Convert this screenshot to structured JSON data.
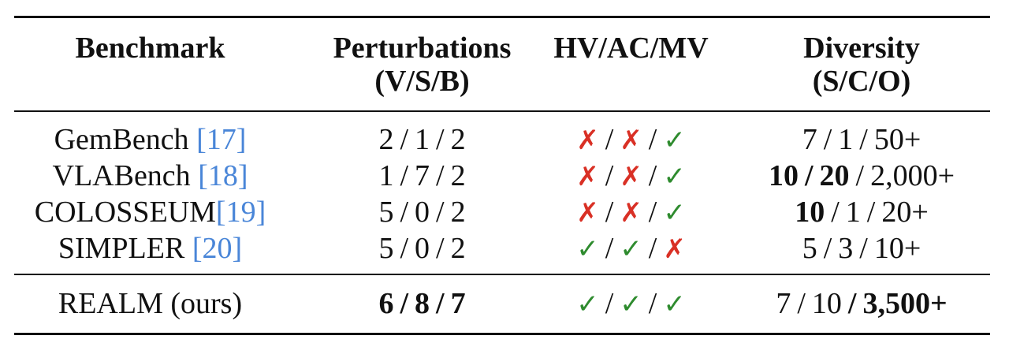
{
  "headers": [
    {
      "line1": "Benchmark",
      "line2": ""
    },
    {
      "line1": "Perturbations",
      "line2": "(V/S/B)"
    },
    {
      "line1": "HV/AC/MV",
      "line2": ""
    },
    {
      "line1": "Diversity",
      "line2": "(S/C/O)"
    }
  ],
  "rows": [
    {
      "name": "GemBench",
      "ref": "[17]",
      "space": true,
      "perturbations": [
        "2",
        "1",
        "2"
      ],
      "perturbations_bold": [
        false,
        false,
        false
      ],
      "hv_ac_mv": [
        "x",
        "x",
        "check"
      ],
      "diversity": [
        "7",
        "1",
        "50+"
      ],
      "diversity_bold": [
        false,
        false,
        false
      ]
    },
    {
      "name": "VLABench",
      "ref": "[18]",
      "space": true,
      "perturbations": [
        "1",
        "7",
        "2"
      ],
      "perturbations_bold": [
        false,
        false,
        false
      ],
      "hv_ac_mv": [
        "x",
        "x",
        "check"
      ],
      "diversity": [
        "10",
        "20",
        "2,000+"
      ],
      "diversity_bold": [
        true,
        true,
        false
      ]
    },
    {
      "name": "COLOSSEUM",
      "ref": "[19]",
      "space": false,
      "perturbations": [
        "5",
        "0",
        "2"
      ],
      "perturbations_bold": [
        false,
        false,
        false
      ],
      "hv_ac_mv": [
        "x",
        "x",
        "check"
      ],
      "diversity": [
        "10",
        "1",
        "20+"
      ],
      "diversity_bold": [
        true,
        false,
        false
      ]
    },
    {
      "name": "SIMPLER",
      "ref": "[20]",
      "space": true,
      "perturbations": [
        "5",
        "0",
        "2"
      ],
      "perturbations_bold": [
        false,
        false,
        false
      ],
      "hv_ac_mv": [
        "check",
        "check",
        "x"
      ],
      "diversity": [
        "5",
        "3",
        "10+"
      ],
      "diversity_bold": [
        false,
        false,
        false
      ]
    },
    {
      "name": "REALM (ours)",
      "ref": "",
      "space": false,
      "perturbations": [
        "6",
        "8",
        "7"
      ],
      "perturbations_bold": [
        true,
        true,
        true
      ],
      "hv_ac_mv": [
        "check",
        "check",
        "check"
      ],
      "diversity": [
        "7",
        "10",
        "3,500+"
      ],
      "diversity_bold": [
        false,
        false,
        true
      ]
    }
  ],
  "symbols": {
    "x": "✗",
    "check": "✓"
  },
  "colors": {
    "ref": "#4a86d8",
    "x": "#d93025",
    "check": "#2e8b2e",
    "rule": "#111111"
  }
}
